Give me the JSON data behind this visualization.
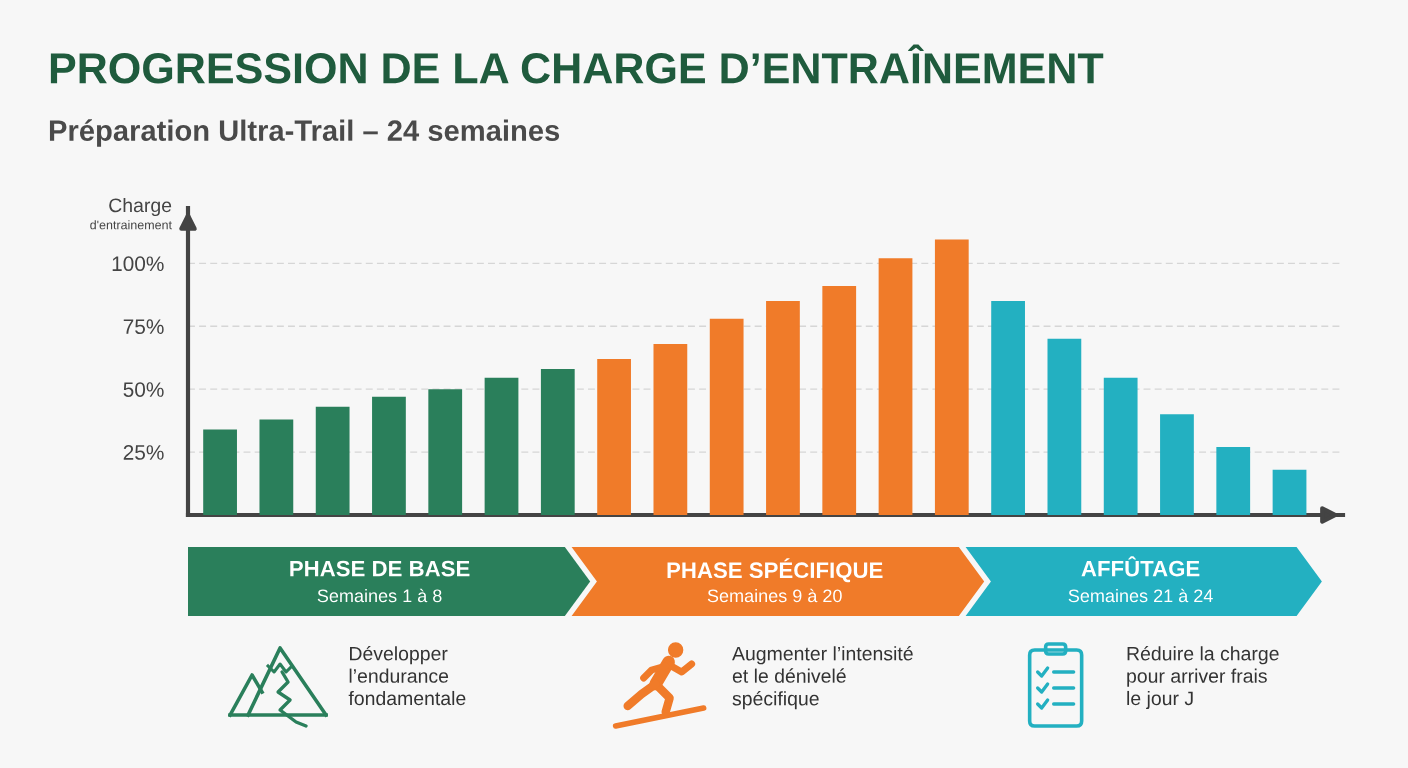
{
  "chart_data": {
    "type": "bar",
    "title": "PROGRESSION DE LA CHARGE D’ENTRAÎNEMENT",
    "subtitle": "Préparation Ultra-Trail – 24 semaines",
    "ylabel": "Charge\nd'entrainement",
    "categories": [
      null,
      null,
      null,
      null,
      null,
      null,
      null,
      null,
      null,
      null,
      null,
      null,
      null,
      null,
      null,
      null,
      null,
      null,
      null,
      null
    ],
    "values": [
      34,
      38,
      43,
      47,
      50,
      54.5,
      58,
      62,
      68,
      78,
      85,
      91,
      102,
      109.5,
      85,
      70,
      54.5,
      40,
      27,
      18
    ],
    "colors": [
      "#2a7f5b",
      "#2a7f5b",
      "#2a7f5b",
      "#2a7f5b",
      "#2a7f5b",
      "#2a7f5b",
      "#2a7f5b",
      "#f07b29",
      "#f07b29",
      "#f07b29",
      "#f07b29",
      "#f07b29",
      "#f07b29",
      "#f07b29",
      "#23b0c1",
      "#23b0c1",
      "#23b0c1",
      "#23b0c1",
      "#23b0c1",
      "#23b0c1"
    ],
    "ylim": [
      0,
      122
    ],
    "yticks": [
      {
        "value": 25,
        "label": "25%"
      },
      {
        "value": 50,
        "label": "50%"
      },
      {
        "value": 75,
        "label": "75%"
      },
      {
        "value": 100,
        "label": "100%"
      }
    ],
    "grid": "y",
    "annotations": [
      "PHASE DE BASE",
      "Semaines 1 à 8",
      "Développer\nl’endurance\nfondamentale",
      "PHASE SPÉCIFIQUE",
      "Semaines 9 à 20",
      "Augmenter l’intensité\net le dénivelé\nspécifique",
      "AFFÛTAGE",
      "Semaines 21 à 24",
      "Réduire la charge\npour arriver frais\nle jour J"
    ]
  }
}
